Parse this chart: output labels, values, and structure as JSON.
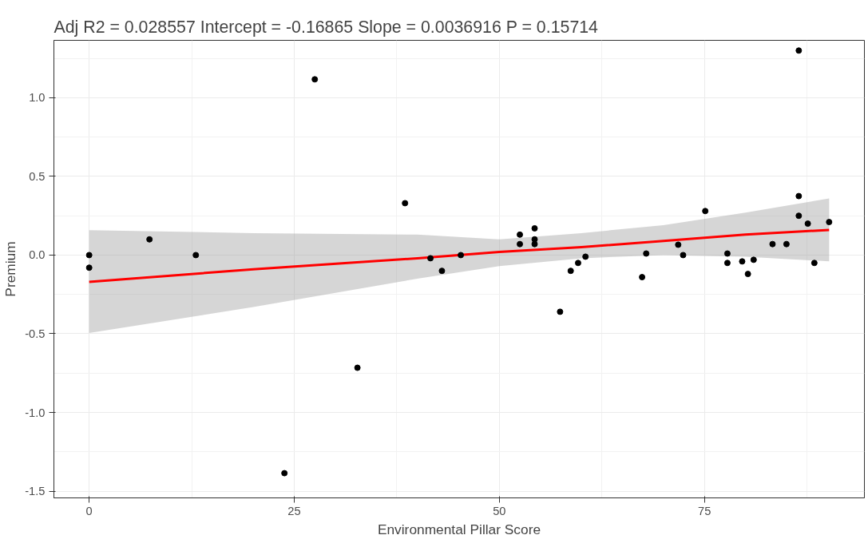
{
  "chart_data": {
    "type": "scatter",
    "title": "Adj R2 =  0.028557 Intercept = -0.16865  Slope = 0.0036916  P = 0.15714",
    "xlabel": "Environmental Pillar Score",
    "ylabel": "Premium",
    "x": [
      0,
      0,
      7.35,
      13.0,
      23.8,
      27.5,
      32.7,
      38.5,
      41.6,
      43.0,
      45.3,
      52.5,
      52.5,
      54.3,
      54.3,
      54.3,
      57.4,
      58.7,
      59.6,
      60.5,
      67.4,
      67.9,
      71.8,
      72.4,
      75.1,
      77.8,
      77.8,
      79.6,
      80.3,
      81.0,
      83.3,
      85.0,
      86.5,
      86.5,
      86.5,
      87.6,
      88.4,
      90.2
    ],
    "series": [
      {
        "color": "#000000",
        "values": [
          0,
          -0.08,
          0.1,
          0.0,
          -1.386,
          1.117,
          -0.716,
          0.33,
          -0.02,
          -0.1,
          0.0,
          0.13,
          0.07,
          0.17,
          0.1,
          0.07,
          -0.36,
          -0.1,
          -0.05,
          -0.01,
          -0.14,
          0.01,
          0.066,
          0.0,
          0.28,
          0.01,
          -0.05,
          -0.04,
          -0.12,
          -0.03,
          0.07,
          0.07,
          1.3,
          0.375,
          0.25,
          0.2,
          -0.05,
          0.21
        ]
      },
      {
        "type": "line",
        "marker": "none",
        "color": "#ff0000",
        "x": [
          0,
          20,
          40,
          50,
          60,
          70,
          80,
          90.2
        ],
        "values": [
          -0.17,
          -0.09,
          -0.02,
          0.02,
          0.05,
          0.09,
          0.13,
          0.16
        ],
        "lower": [
          -0.495,
          -0.33,
          -0.15,
          -0.07,
          -0.02,
          0.0,
          -0.01,
          -0.04
        ],
        "upper": [
          0.158,
          0.14,
          0.13,
          0.1,
          0.14,
          0.19,
          0.27,
          0.36
        ]
      }
    ],
    "xlim": [
      -4.3,
      94.5
    ],
    "ylim": [
      -1.543,
      1.365
    ],
    "xticks": [
      0,
      25,
      50,
      75
    ],
    "yticks": [
      {
        "value": -1.5,
        "label": "-1.5"
      },
      {
        "value": -1.0,
        "label": "-1.0"
      },
      {
        "value": -0.5,
        "label": "-0.5"
      },
      {
        "value": 0.0,
        "label": "0.0"
      },
      {
        "value": 0.5,
        "label": "0.5"
      },
      {
        "value": 1.0,
        "label": "1.0"
      }
    ],
    "grid": true,
    "marker": "circle",
    "line_style": "solid"
  }
}
